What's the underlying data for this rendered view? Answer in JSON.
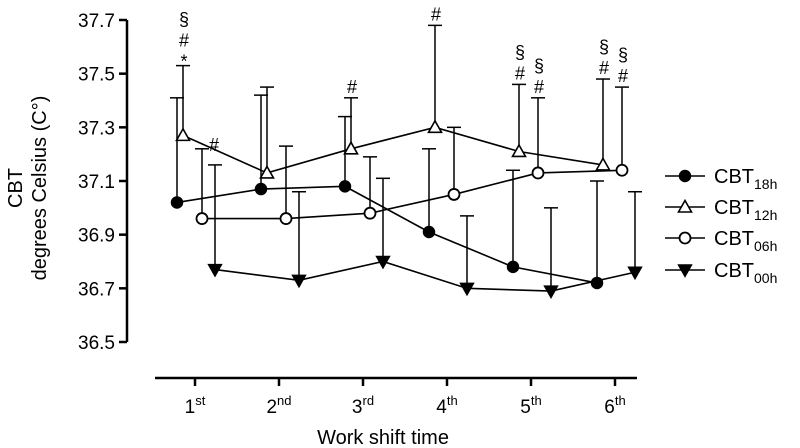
{
  "chart_data": {
    "type": "line",
    "xlabel": "Work shift time",
    "ylabel_line1": "CBT",
    "ylabel_line2": "degrees Celsius (C°)",
    "ylim": [
      36.5,
      37.7
    ],
    "y_ticks": [
      "36.5",
      "36.7",
      "36.9",
      "37.1",
      "37.3",
      "37.5",
      "37.7"
    ],
    "categories": [
      {
        "base": "1",
        "sup": "st"
      },
      {
        "base": "2",
        "sup": "nd"
      },
      {
        "base": "3",
        "sup": "rd"
      },
      {
        "base": "4",
        "sup": "th"
      },
      {
        "base": "5",
        "sup": "th"
      },
      {
        "base": "6",
        "sup": "th"
      }
    ],
    "grid": false,
    "legend_position": "right",
    "series": [
      {
        "name_base": "CBT",
        "name_sub": "18h",
        "marker": "filled-circle",
        "values": [
          37.02,
          37.07,
          37.08,
          36.91,
          36.78,
          36.72
        ],
        "error_upper": [
          37.41,
          37.42,
          37.34,
          37.22,
          37.14,
          37.1
        ],
        "annotations": [
          "",
          "",
          "",
          "",
          "",
          ""
        ]
      },
      {
        "name_base": "CBT",
        "name_sub": "12h",
        "marker": "open-triangle-up",
        "values": [
          37.27,
          37.13,
          37.22,
          37.3,
          37.21,
          37.16
        ],
        "error_upper": [
          37.53,
          37.45,
          37.41,
          37.68,
          37.46,
          37.48
        ],
        "annotations": [
          "§#*",
          "",
          "#",
          "#",
          "§#",
          "§#"
        ]
      },
      {
        "name_base": "CBT",
        "name_sub": "06h",
        "marker": "open-circle",
        "values": [
          36.96,
          36.96,
          36.98,
          37.05,
          37.13,
          37.14
        ],
        "error_upper": [
          37.22,
          37.23,
          37.19,
          37.3,
          37.41,
          37.45
        ],
        "annotations": [
          "#",
          "",
          "",
          "",
          "§#",
          "§#"
        ]
      },
      {
        "name_base": "CBT",
        "name_sub": "00h",
        "marker": "filled-triangle-down",
        "values": [
          36.77,
          36.73,
          36.8,
          36.7,
          36.69,
          36.76
        ],
        "error_upper": [
          37.16,
          37.06,
          37.11,
          36.97,
          37.0,
          37.06
        ],
        "annotations": [
          "",
          "",
          "",
          "",
          "",
          ""
        ]
      }
    ]
  }
}
